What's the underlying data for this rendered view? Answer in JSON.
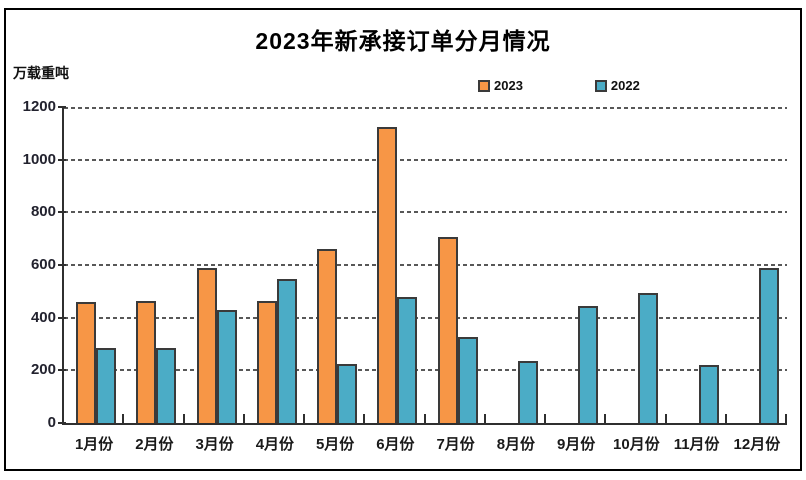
{
  "chart_data": {
    "type": "bar",
    "title": "2023年新承接订单分月情况",
    "ylabel": "万载重吨",
    "categories": [
      "1月份",
      "2月份",
      "3月份",
      "4月份",
      "5月份",
      "6月份",
      "7月份",
      "8月份",
      "9月份",
      "10月份",
      "11月份",
      "12月份"
    ],
    "series": [
      {
        "name": "2023",
        "color": "#F79646",
        "values": [
          460,
          465,
          590,
          465,
          660,
          1125,
          705,
          null,
          null,
          null,
          null,
          null
        ]
      },
      {
        "name": "2022",
        "color": "#4BACC6",
        "values": [
          285,
          285,
          430,
          545,
          225,
          480,
          325,
          235,
          443,
          495,
          220,
          590
        ]
      }
    ],
    "ylim": [
      0,
      1200
    ],
    "yticks": [
      0,
      200,
      400,
      600,
      800,
      1000,
      1200
    ],
    "grid": "horizontal-dashed",
    "legend_position": "top",
    "bar_outline_color": "#3a3a3a",
    "frame_border_color": "#000000"
  }
}
